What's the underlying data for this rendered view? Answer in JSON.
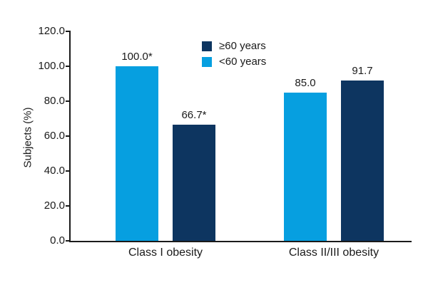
{
  "chart_data": {
    "type": "bar",
    "title": "",
    "xlabel": "",
    "ylabel": "Subjects (%)",
    "ylim": [
      0,
      120
    ],
    "ytick_values": [
      0,
      20,
      40,
      60,
      80,
      100,
      120
    ],
    "yticks": [
      "0.0",
      "20.0",
      "40.0",
      "60.0",
      "80.0",
      "100.0",
      "120.0"
    ],
    "categories": [
      "Class I obesity",
      "Class II/III obesity"
    ],
    "grid": "off",
    "legend_position": "top-center",
    "legend": [
      {
        "label": "≥60 years",
        "color": "#0d3560"
      },
      {
        "label": "<60 years",
        "color": "#069fe0"
      }
    ],
    "series": [
      {
        "name": "<60 years",
        "color": "#069fe0",
        "values": [
          100.0,
          85.0
        ],
        "value_labels": [
          "100.0*",
          "85.0"
        ]
      },
      {
        "name": "≥60 years",
        "color": "#0d3560",
        "values": [
          66.7,
          91.7
        ],
        "value_labels": [
          "66.7*",
          "91.7"
        ]
      }
    ],
    "axis_color": "#1a1a1a"
  }
}
